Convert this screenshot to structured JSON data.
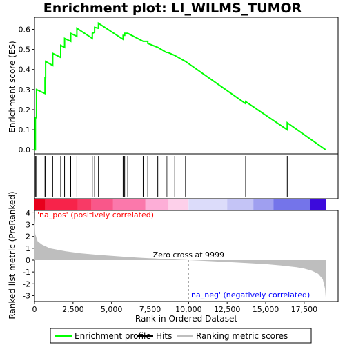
{
  "chart_data": {
    "type": "line",
    "title": "Enrichment plot: LI_WILMS_TUMOR",
    "colors": {
      "enrichment": "#00ff00",
      "hits": "#000000",
      "metric": "#bebebe",
      "pos_label": "#ff0000",
      "neg_label": "#0000ff"
    },
    "enrichment_panel": {
      "ylabel": "Enrichment score (ES)",
      "ylim": [
        -0.02,
        0.66
      ],
      "yticks": [
        "0.0",
        "0.1",
        "0.2",
        "0.3",
        "0.4",
        "0.5",
        "0.6"
      ],
      "ytick_values": [
        0.0,
        0.1,
        0.2,
        0.3,
        0.4,
        0.5,
        0.6
      ],
      "series": [
        {
          "name": "Enrichment profile",
          "x": [
            0,
            60,
            60,
            130,
            130,
            680,
            680,
            720,
            720,
            1180,
            1180,
            1700,
            1700,
            1950,
            1950,
            2350,
            2350,
            2750,
            2750,
            3750,
            3750,
            3900,
            3900,
            4150,
            4150,
            5750,
            5750,
            5850,
            5850,
            6050,
            6050,
            7050,
            7050,
            7350,
            7350,
            8000,
            8000,
            8550,
            8550,
            8650,
            8650,
            9100,
            9100,
            9800,
            9800,
            13700,
            13700,
            16400,
            16400,
            18900
          ],
          "y": [
            0.0,
            0.0,
            0.16,
            0.16,
            0.3,
            0.28,
            0.36,
            0.36,
            0.44,
            0.42,
            0.48,
            0.46,
            0.52,
            0.51,
            0.555,
            0.54,
            0.58,
            0.565,
            0.605,
            0.555,
            0.58,
            0.585,
            0.61,
            0.605,
            0.63,
            0.55,
            0.57,
            0.57,
            0.58,
            0.58,
            0.58,
            0.54,
            0.54,
            0.54,
            0.53,
            0.51,
            0.51,
            0.485,
            0.485,
            0.485,
            0.485,
            0.47,
            0.47,
            0.44,
            0.44,
            0.23,
            0.24,
            0.1,
            0.135,
            0.0
          ]
        }
      ]
    },
    "hits": [
      60,
      130,
      680,
      720,
      1180,
      1700,
      1950,
      2350,
      2750,
      3750,
      3900,
      4150,
      5750,
      5850,
      6050,
      7050,
      7350,
      8000,
      8550,
      8650,
      9100,
      9800,
      13700,
      16400
    ],
    "ranked_panel": {
      "ylabel": "Ranked list metric (PreRanked)",
      "xlabel": "Rank in Ordered Dataset",
      "ylim": [
        -3.5,
        4.2
      ],
      "yticks": [
        "-3",
        "-2",
        "-1",
        "0",
        "1",
        "2",
        "3",
        "4"
      ],
      "ytick_values": [
        -3,
        -2,
        -1,
        0,
        1,
        2,
        3,
        4
      ],
      "xlim": [
        0,
        19700
      ],
      "xticks": [
        "0",
        "2,500",
        "5,000",
        "7,500",
        "10,000",
        "12,500",
        "15,000",
        "17,500"
      ],
      "xtick_values": [
        0,
        2500,
        5000,
        7500,
        10000,
        12500,
        15000,
        17500
      ],
      "metric_x": [
        0,
        50,
        200,
        500,
        1000,
        2000,
        3000,
        4000,
        5000,
        6000,
        7000,
        8000,
        9000,
        9999,
        11000,
        12000,
        13000,
        14000,
        15000,
        16000,
        17000,
        17500,
        18000,
        18400,
        18700,
        18850,
        18900
      ],
      "metric_y": [
        3.6,
        2.2,
        1.6,
        1.3,
        1.0,
        0.75,
        0.58,
        0.46,
        0.36,
        0.27,
        0.19,
        0.12,
        0.06,
        0.0,
        -0.06,
        -0.12,
        -0.19,
        -0.26,
        -0.34,
        -0.45,
        -0.6,
        -0.72,
        -0.9,
        -1.15,
        -1.6,
        -2.4,
        -3.2
      ],
      "zero_cross_label": "Zero cross at 9999",
      "zero_cross_x": 9999,
      "pos_label": "'na_pos' (positively correlated)",
      "neg_label": "'na_neg' (negatively correlated)"
    },
    "color_bar": {
      "segments": [
        {
          "end": 700,
          "color": "#e8001c"
        },
        {
          "end": 2800,
          "color": "#f7234a"
        },
        {
          "end": 3700,
          "color": "#f83a66"
        },
        {
          "end": 5100,
          "color": "#f9578a"
        },
        {
          "end": 7200,
          "color": "#fb78ab"
        },
        {
          "end": 8700,
          "color": "#fdaed7"
        },
        {
          "end": 9999,
          "color": "#fdd0ea"
        },
        {
          "end": 10000,
          "color": "#ffffff"
        },
        {
          "end": 12500,
          "color": "#dcdcfa"
        },
        {
          "end": 14200,
          "color": "#c4c4f6"
        },
        {
          "end": 15500,
          "color": "#9f9ff0"
        },
        {
          "end": 17900,
          "color": "#7474ea"
        },
        {
          "end": 18900,
          "color": "#3c0adc"
        }
      ]
    },
    "legend": [
      {
        "label": "Enrichment profile",
        "kind": "line",
        "color": "#00ff00"
      },
      {
        "label": "Hits",
        "kind": "line",
        "color": "#000000"
      },
      {
        "label": "Ranking metric scores",
        "kind": "line",
        "color": "#bebebe"
      }
    ]
  }
}
